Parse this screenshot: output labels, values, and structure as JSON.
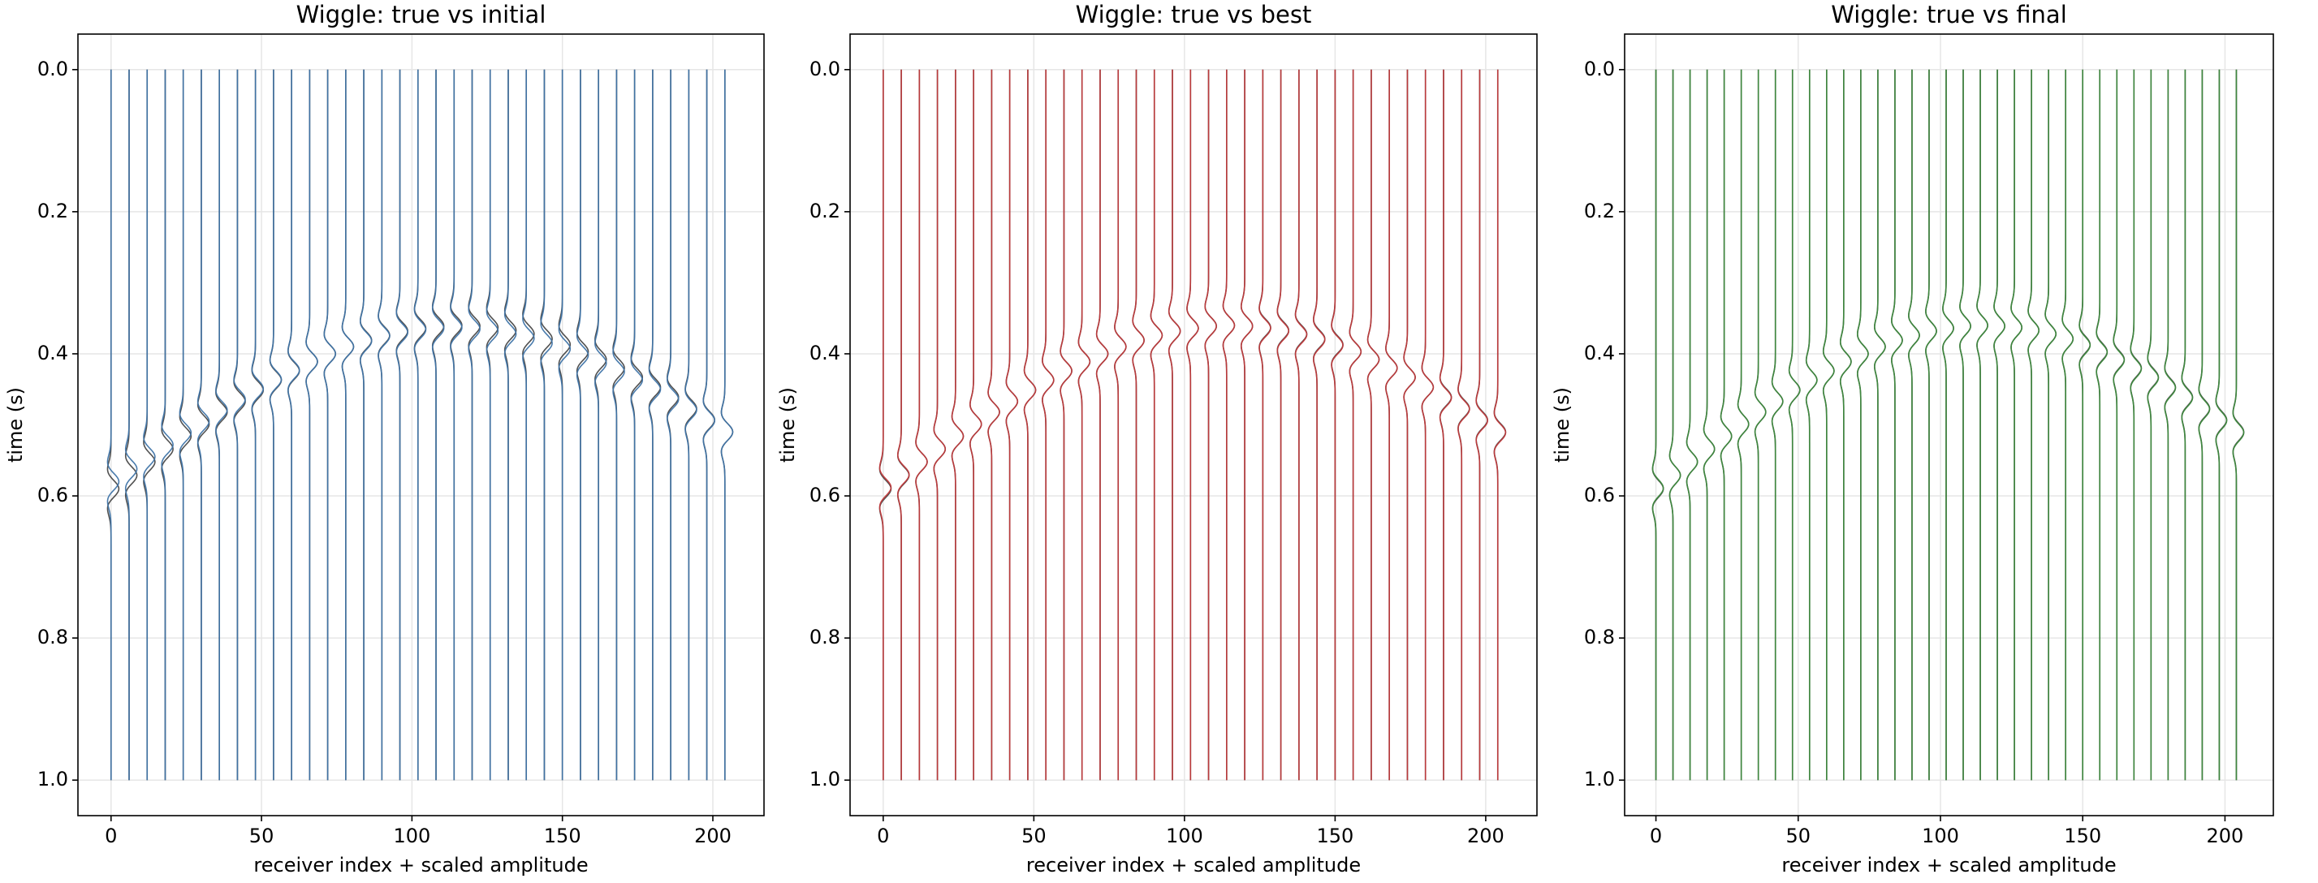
{
  "chart_data": [
    {
      "type": "wiggle",
      "title": "Wiggle: true vs initial",
      "xlabel": "receiver index + scaled amplitude",
      "ylabel": "time (s)",
      "xlim": [
        -11,
        217
      ],
      "ylim": [
        1.05,
        -0.05
      ],
      "xticks": [
        0,
        50,
        100,
        150,
        200
      ],
      "yticks": [
        {
          "value": 0,
          "label": "0.0"
        },
        0.2,
        0.4,
        0.6,
        0.8,
        {
          "value": 1,
          "label": "1.0"
        }
      ],
      "grid": true,
      "x": [
        0,
        6,
        12,
        18,
        24,
        30,
        36,
        42,
        48,
        54,
        60,
        66,
        72,
        78,
        84,
        90,
        96,
        102,
        108,
        114,
        120,
        126,
        132,
        138,
        144,
        150,
        156,
        162,
        168,
        174,
        180,
        186,
        192,
        198,
        204
      ],
      "series": [
        {
          "color": "#333333",
          "values": [
            0.59,
            0.571,
            0.552,
            0.534,
            0.516,
            0.499,
            0.482,
            0.467,
            0.451,
            0.437,
            0.424,
            0.411,
            0.4,
            0.39,
            0.381,
            0.374,
            0.368,
            0.364,
            0.361,
            0.36,
            0.361,
            0.363,
            0.367,
            0.372,
            0.379,
            0.387,
            0.397,
            0.408,
            0.42,
            0.433,
            0.447,
            0.461,
            0.477,
            0.493,
            0.51
          ]
        },
        {
          "color": "#3f74a8",
          "values": [
            0.58,
            0.562,
            0.545,
            0.528,
            0.511,
            0.495,
            0.479,
            0.464,
            0.449,
            0.436,
            0.423,
            0.411,
            0.4,
            0.39,
            0.382,
            0.375,
            0.37,
            0.366,
            0.364,
            0.363,
            0.365,
            0.368,
            0.372,
            0.378,
            0.385,
            0.393,
            0.402,
            0.413,
            0.425,
            0.437,
            0.45,
            0.464,
            0.479,
            0.494,
            0.51
          ]
        }
      ]
    },
    {
      "type": "wiggle",
      "title": "Wiggle: true vs best",
      "xlabel": "receiver index + scaled amplitude",
      "ylabel": "time (s)",
      "xlim": [
        -11,
        217
      ],
      "ylim": [
        1.05,
        -0.05
      ],
      "xticks": [
        0,
        50,
        100,
        150,
        200
      ],
      "yticks": [
        {
          "value": 0,
          "label": "0.0"
        },
        0.2,
        0.4,
        0.6,
        0.8,
        {
          "value": 1,
          "label": "1.0"
        }
      ],
      "grid": true,
      "x": [
        0,
        6,
        12,
        18,
        24,
        30,
        36,
        42,
        48,
        54,
        60,
        66,
        72,
        78,
        84,
        90,
        96,
        102,
        108,
        114,
        120,
        126,
        132,
        138,
        144,
        150,
        156,
        162,
        168,
        174,
        180,
        186,
        192,
        198,
        204
      ],
      "series": [
        {
          "color": "#333333",
          "values": [
            0.59,
            0.571,
            0.552,
            0.534,
            0.516,
            0.499,
            0.482,
            0.467,
            0.451,
            0.437,
            0.424,
            0.411,
            0.4,
            0.39,
            0.381,
            0.374,
            0.368,
            0.364,
            0.361,
            0.36,
            0.361,
            0.363,
            0.367,
            0.372,
            0.379,
            0.387,
            0.397,
            0.408,
            0.42,
            0.433,
            0.447,
            0.461,
            0.477,
            0.493,
            0.51
          ]
        },
        {
          "color": "#c0393b",
          "values": [
            0.588,
            0.57,
            0.552,
            0.534,
            0.516,
            0.499,
            0.482,
            0.467,
            0.451,
            0.437,
            0.424,
            0.411,
            0.4,
            0.39,
            0.381,
            0.374,
            0.368,
            0.364,
            0.361,
            0.36,
            0.361,
            0.364,
            0.368,
            0.373,
            0.38,
            0.388,
            0.397,
            0.408,
            0.42,
            0.433,
            0.447,
            0.462,
            0.478,
            0.494,
            0.511
          ]
        }
      ]
    },
    {
      "type": "wiggle",
      "title": "Wiggle: true vs final",
      "xlabel": "receiver index + scaled amplitude",
      "ylabel": "time (s)",
      "xlim": [
        -11,
        217
      ],
      "ylim": [
        1.05,
        -0.05
      ],
      "xticks": [
        0,
        50,
        100,
        150,
        200
      ],
      "yticks": [
        {
          "value": 0,
          "label": "0.0"
        },
        0.2,
        0.4,
        0.6,
        0.8,
        {
          "value": 1,
          "label": "1.0"
        }
      ],
      "grid": true,
      "x": [
        0,
        6,
        12,
        18,
        24,
        30,
        36,
        42,
        48,
        54,
        60,
        66,
        72,
        78,
        84,
        90,
        96,
        102,
        108,
        114,
        120,
        126,
        132,
        138,
        144,
        150,
        156,
        162,
        168,
        174,
        180,
        186,
        192,
        198,
        204
      ],
      "series": [
        {
          "color": "#333333",
          "values": [
            0.59,
            0.571,
            0.552,
            0.534,
            0.516,
            0.499,
            0.482,
            0.467,
            0.451,
            0.437,
            0.424,
            0.411,
            0.4,
            0.39,
            0.381,
            0.374,
            0.368,
            0.364,
            0.361,
            0.36,
            0.361,
            0.363,
            0.367,
            0.372,
            0.379,
            0.387,
            0.397,
            0.408,
            0.42,
            0.433,
            0.447,
            0.461,
            0.477,
            0.493,
            0.51
          ]
        },
        {
          "color": "#3d8a3d",
          "values": [
            0.589,
            0.571,
            0.552,
            0.534,
            0.516,
            0.499,
            0.482,
            0.467,
            0.451,
            0.437,
            0.424,
            0.411,
            0.4,
            0.39,
            0.381,
            0.374,
            0.368,
            0.364,
            0.361,
            0.36,
            0.361,
            0.363,
            0.367,
            0.372,
            0.379,
            0.388,
            0.398,
            0.409,
            0.421,
            0.434,
            0.448,
            0.462,
            0.478,
            0.494,
            0.511
          ]
        }
      ]
    }
  ]
}
